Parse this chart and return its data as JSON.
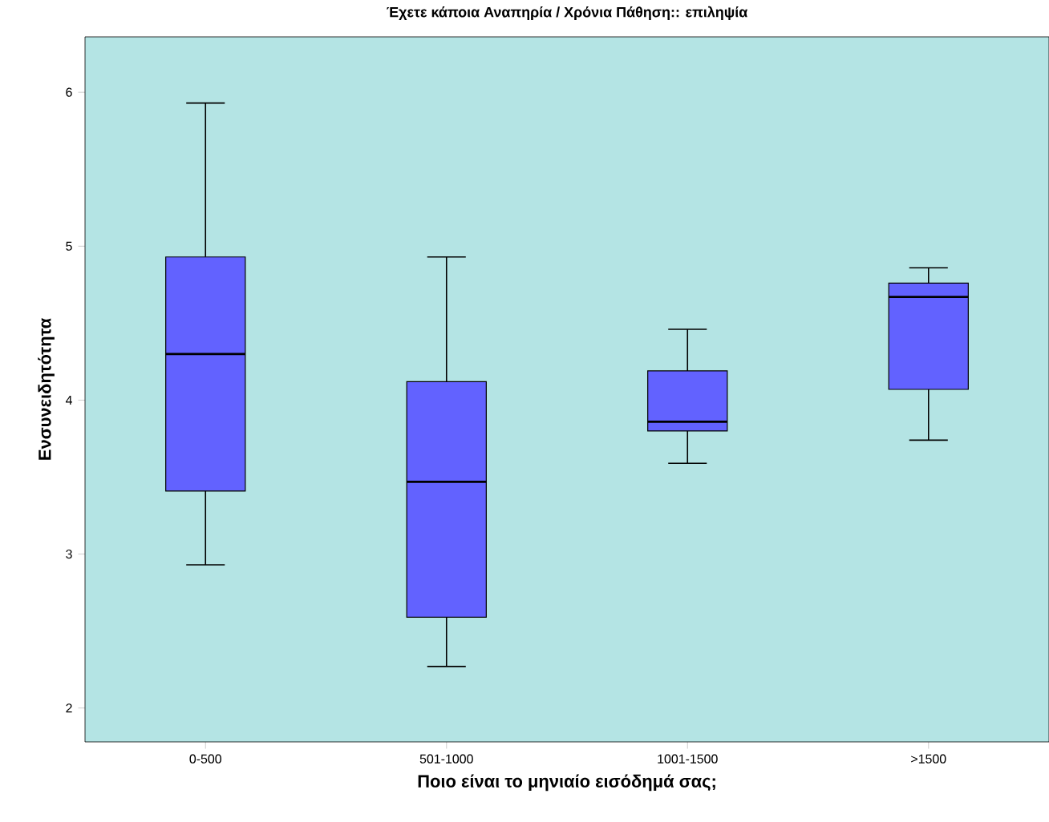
{
  "chart_data": {
    "type": "box",
    "title": "Έχετε κάποια Αναπηρία / Χρόνια Πάθηση:: επιληψία",
    "xlabel": "Ποιο είναι το μηνιαίο εισόδημά σας;",
    "ylabel": "Ενσυνειδητότητα",
    "categories": [
      "0-500",
      "501-1000",
      "1001-1500",
      ">1500"
    ],
    "color": "#6262ff",
    "boxes": [
      {
        "low": 2.93,
        "q1": 3.41,
        "median": 4.3,
        "q3": 4.93,
        "high": 5.93
      },
      {
        "low": 2.27,
        "q1": 2.59,
        "median": 3.47,
        "q3": 4.12,
        "high": 4.93
      },
      {
        "low": 3.59,
        "q1": 3.8,
        "median": 3.86,
        "q3": 4.19,
        "high": 4.46
      },
      {
        "low": 3.74,
        "q1": 4.07,
        "median": 4.67,
        "q3": 4.76,
        "high": 4.86
      }
    ],
    "ylim": [
      1.78,
      6.36
    ],
    "yticks": [
      2,
      3,
      4,
      5,
      6
    ],
    "grid": false
  }
}
